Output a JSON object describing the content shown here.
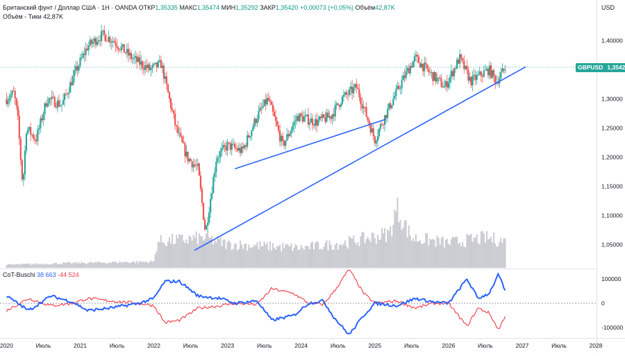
{
  "header": {
    "instrument": "Британский фунт / Доллар США · 1Н · OANDA",
    "ohlc": [
      {
        "label": "ОТКР",
        "value": "1,35335"
      },
      {
        "label": "МАКС",
        "value": "1,35474"
      },
      {
        "label": "МИН",
        "value": "1,35292"
      },
      {
        "label": "ЗАКР",
        "value": "1,35420"
      }
    ],
    "change": "+0,00073 (+0,05%)",
    "volume_label": "Объём",
    "volume_value": "42,87K",
    "volume_line_label": "Объём - Тики",
    "volume_line_value": "42,87K"
  },
  "currency": "USD",
  "symbol_badge": {
    "symbol": "GBPUSD",
    "price": "1,35420"
  },
  "indicator": {
    "name": "CoT-Buschi",
    "value1": "38 663",
    "value2": "-44 524"
  },
  "colors": {
    "up": "#26a69a",
    "down": "#ef5350",
    "trend": "#2962ff",
    "cot_long": "#2962ff",
    "cot_short": "#f23645",
    "volume": "#c9cbd1"
  },
  "chart_data": {
    "type": "candlestick",
    "x_ticks": [
      "2020",
      "Июль",
      "2021",
      "Июль",
      "2022",
      "Июль",
      "2023",
      "Июль",
      "2024",
      "Июль",
      "2025",
      "Июль",
      "2026",
      "Июль",
      "2027",
      "Июль",
      "2028"
    ],
    "y_ticks": [
      "1,40000",
      "1,35000",
      "1,30000",
      "1,25000",
      "1,20000",
      "1,15000",
      "1,10000",
      "1,05000"
    ],
    "y_range": [
      1.01,
      1.46
    ],
    "last_price": 1.3542,
    "price_path": [
      [
        2020.0,
        1.3
      ],
      [
        2020.1,
        1.31
      ],
      [
        2020.15,
        1.27
      ],
      [
        2020.22,
        1.15
      ],
      [
        2020.27,
        1.25
      ],
      [
        2020.4,
        1.23
      ],
      [
        2020.55,
        1.3
      ],
      [
        2020.75,
        1.29
      ],
      [
        2020.95,
        1.35
      ],
      [
        2021.1,
        1.39
      ],
      [
        2021.3,
        1.41
      ],
      [
        2021.45,
        1.4
      ],
      [
        2021.7,
        1.37
      ],
      [
        2021.95,
        1.35
      ],
      [
        2022.1,
        1.36
      ],
      [
        2022.3,
        1.25
      ],
      [
        2022.45,
        1.2
      ],
      [
        2022.6,
        1.18
      ],
      [
        2022.7,
        1.07
      ],
      [
        2022.85,
        1.2
      ],
      [
        2023.0,
        1.22
      ],
      [
        2023.2,
        1.21
      ],
      [
        2023.4,
        1.27
      ],
      [
        2023.55,
        1.3
      ],
      [
        2023.75,
        1.22
      ],
      [
        2023.95,
        1.27
      ],
      [
        2024.2,
        1.26
      ],
      [
        2024.4,
        1.27
      ],
      [
        2024.55,
        1.3
      ],
      [
        2024.75,
        1.32
      ],
      [
        2025.0,
        1.23
      ],
      [
        2025.1,
        1.26
      ],
      [
        2025.25,
        1.3
      ],
      [
        2025.45,
        1.35
      ],
      [
        2025.55,
        1.37
      ],
      [
        2025.7,
        1.35
      ],
      [
        2025.95,
        1.32
      ],
      [
        2026.15,
        1.37
      ],
      [
        2026.3,
        1.33
      ],
      [
        2026.55,
        1.35
      ],
      [
        2026.65,
        1.33
      ],
      [
        2026.78,
        1.3542
      ]
    ],
    "trendlines": [
      {
        "from": [
          2022.55,
          1.04
        ],
        "to": [
          2027.05,
          1.355
        ]
      },
      {
        "from": [
          2023.1,
          1.18
        ],
        "to": [
          2025.15,
          1.265
        ]
      }
    ],
    "volume_path": [
      [
        2020.0,
        5
      ],
      [
        2021.0,
        8
      ],
      [
        2022.0,
        10
      ],
      [
        2022.05,
        42
      ],
      [
        2022.7,
        48
      ],
      [
        2023.0,
        38
      ],
      [
        2024.0,
        32
      ],
      [
        2024.6,
        40
      ],
      [
        2025.2,
        55
      ],
      [
        2025.3,
        95
      ],
      [
        2025.5,
        48
      ],
      [
        2026.0,
        40
      ],
      [
        2026.5,
        48
      ],
      [
        2026.8,
        42
      ]
    ],
    "cot_ticks": [
      "100000",
      "0",
      "-100000"
    ],
    "cot_range": [
      -140000,
      140000
    ],
    "cot_long": [
      [
        2020.0,
        30000
      ],
      [
        2020.3,
        -30000
      ],
      [
        2020.6,
        30000
      ],
      [
        2020.9,
        5000
      ],
      [
        2021.1,
        -30000
      ],
      [
        2021.4,
        -20000
      ],
      [
        2021.8,
        0
      ],
      [
        2022.0,
        20000
      ],
      [
        2022.15,
        90000
      ],
      [
        2022.35,
        90000
      ],
      [
        2022.6,
        30000
      ],
      [
        2022.9,
        20000
      ],
      [
        2023.1,
        0
      ],
      [
        2023.4,
        10000
      ],
      [
        2023.6,
        -70000
      ],
      [
        2023.9,
        -50000
      ],
      [
        2024.1,
        0
      ],
      [
        2024.3,
        10000
      ],
      [
        2024.45,
        -60000
      ],
      [
        2024.65,
        -130000
      ],
      [
        2024.85,
        -50000
      ],
      [
        2025.0,
        0
      ],
      [
        2025.3,
        -10000
      ],
      [
        2025.55,
        20000
      ],
      [
        2025.8,
        5000
      ],
      [
        2026.0,
        0
      ],
      [
        2026.25,
        100000
      ],
      [
        2026.4,
        20000
      ],
      [
        2026.55,
        40000
      ],
      [
        2026.68,
        120000
      ],
      [
        2026.78,
        38663
      ]
    ],
    "cot_short": [
      [
        2020.0,
        -30000
      ],
      [
        2020.3,
        20000
      ],
      [
        2020.6,
        -10000
      ],
      [
        2020.9,
        0
      ],
      [
        2021.1,
        20000
      ],
      [
        2021.4,
        10000
      ],
      [
        2021.8,
        0
      ],
      [
        2022.0,
        -10000
      ],
      [
        2022.15,
        -80000
      ],
      [
        2022.35,
        -70000
      ],
      [
        2022.6,
        -20000
      ],
      [
        2022.9,
        -10000
      ],
      [
        2023.1,
        0
      ],
      [
        2023.4,
        -5000
      ],
      [
        2023.6,
        60000
      ],
      [
        2023.9,
        40000
      ],
      [
        2024.1,
        0
      ],
      [
        2024.3,
        -5000
      ],
      [
        2024.45,
        50000
      ],
      [
        2024.65,
        140000
      ],
      [
        2024.85,
        40000
      ],
      [
        2025.0,
        0
      ],
      [
        2025.3,
        10000
      ],
      [
        2025.55,
        -20000
      ],
      [
        2025.8,
        0
      ],
      [
        2026.0,
        0
      ],
      [
        2026.25,
        -95000
      ],
      [
        2026.4,
        -20000
      ],
      [
        2026.55,
        -40000
      ],
      [
        2026.68,
        -110000
      ],
      [
        2026.78,
        -44524
      ]
    ]
  }
}
